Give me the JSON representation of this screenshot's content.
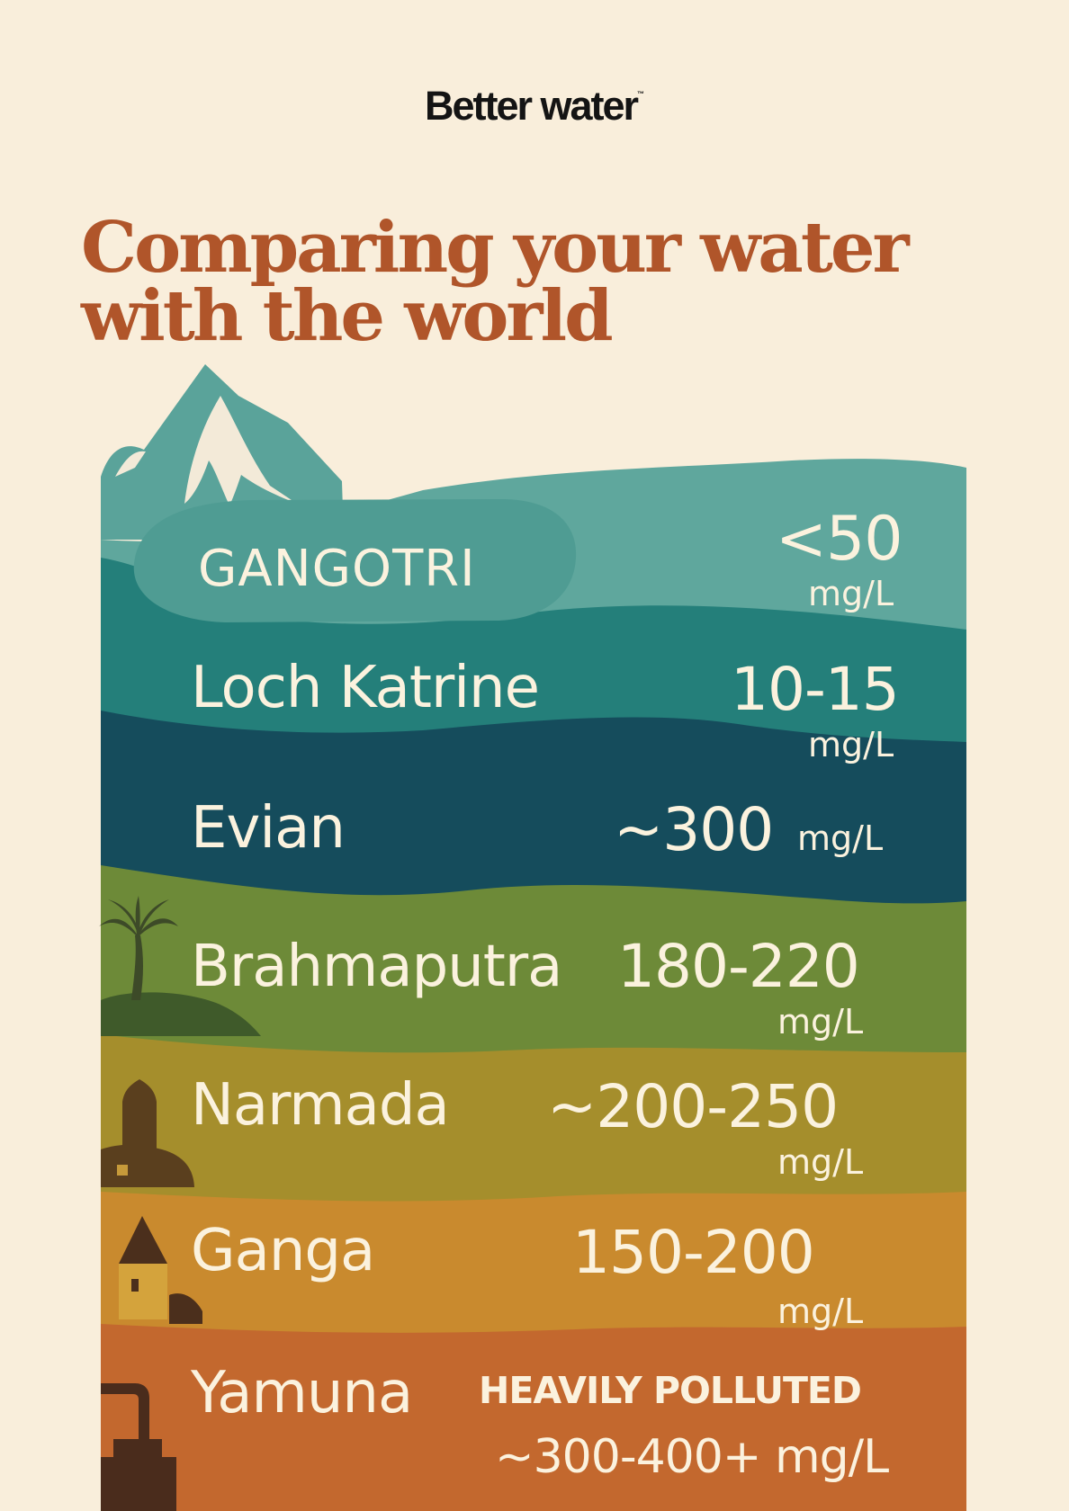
{
  "brand": {
    "name": "Better water",
    "mark": "™"
  },
  "headline": {
    "line1": "Comparing your water",
    "line2": "with the world"
  },
  "sources": [
    {
      "name": "GANGOTRI",
      "value": "<50",
      "unit": "mg/L",
      "color": "#5fa79d"
    },
    {
      "name": "Loch Katrine",
      "value": "10-15",
      "unit": "mg/L",
      "color": "#247f7a"
    },
    {
      "name": "Evian",
      "value": "~300",
      "unit": "mg/L",
      "color": "#154c5c"
    },
    {
      "name": "Brahmaputra",
      "value": "180-220",
      "unit": "mg/L",
      "color": "#6d8a38"
    },
    {
      "name": "Narmada",
      "value": "~200-250",
      "unit": "mg/L",
      "color": "#a58e2c"
    },
    {
      "name": "Ganga",
      "value": "150-200",
      "unit": "mg/L",
      "color": "#c98a2e"
    },
    {
      "name": "Yamuna",
      "note": "HEAVILY POLLUTED",
      "value": "~300-400+ mg/L",
      "color": "#c3682e"
    }
  ],
  "colors": {
    "background": "#f9eedb",
    "headline": "#b0552a",
    "label": "#fbf2de"
  }
}
